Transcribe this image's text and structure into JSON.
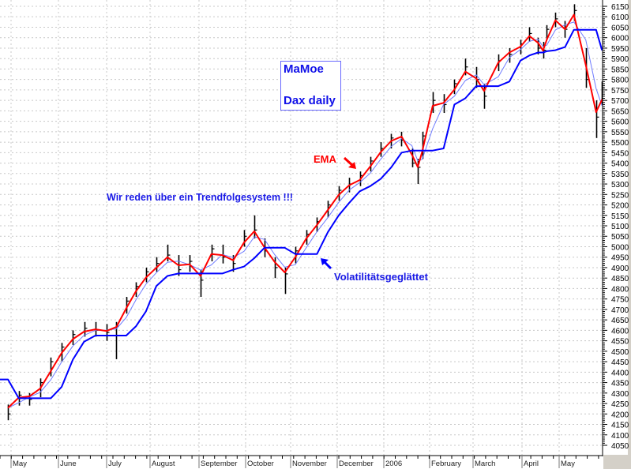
{
  "chart_data": {
    "type": "ohlc-line",
    "title": "",
    "xlabel": "",
    "ylabel": "",
    "ylim": [
      4050,
      6150
    ],
    "y_grid_step": 50,
    "grid": true,
    "y_axis_side": "right",
    "y_tick_labels": [
      "4050",
      "4100",
      "4150",
      "4200",
      "4250",
      "4300",
      "4350",
      "4400",
      "4450",
      "4500",
      "4550",
      "4600",
      "4650",
      "4700",
      "4750",
      "4800",
      "4850",
      "4900",
      "4950",
      "5000",
      "5050",
      "5100",
      "5150",
      "5200",
      "5250",
      "5300",
      "5350",
      "5400",
      "5450",
      "5500",
      "5550",
      "5600",
      "5650",
      "5700",
      "5750",
      "5800",
      "5850",
      "5900",
      "5950",
      "6000",
      "6050",
      "6100",
      "6150"
    ],
    "x_tick_labels": [
      {
        "month": "2005-05",
        "label": "May"
      },
      {
        "month": "2005-06",
        "label": "June"
      },
      {
        "month": "2005-07",
        "label": "July"
      },
      {
        "month": "2005-08",
        "label": "August"
      },
      {
        "month": "2005-09",
        "label": "September"
      },
      {
        "month": "2005-10",
        "label": "October"
      },
      {
        "month": "2005-11",
        "label": "November"
      },
      {
        "month": "2005-12",
        "label": "December"
      },
      {
        "month": "2006-01",
        "label": "2006"
      },
      {
        "month": "2006-02",
        "label": "February"
      },
      {
        "month": "2006-03",
        "label": "March"
      },
      {
        "month": "2006-04",
        "label": "April"
      },
      {
        "month": "2006-05",
        "label": "May"
      }
    ],
    "colors": {
      "bars": "#000000",
      "ema": "#ff0000",
      "ma_thin": "#6f7cff",
      "volatility": "#0000ff",
      "grid": "#c8c8c8"
    },
    "dates": [
      "2005-04-29",
      "2005-05-06",
      "2005-05-13",
      "2005-05-20",
      "2005-05-27",
      "2005-06-03",
      "2005-06-10",
      "2005-06-17",
      "2005-06-24",
      "2005-07-01",
      "2005-07-08",
      "2005-07-15",
      "2005-07-22",
      "2005-07-29",
      "2005-08-05",
      "2005-08-12",
      "2005-08-19",
      "2005-08-26",
      "2005-09-02",
      "2005-09-09",
      "2005-09-16",
      "2005-09-23",
      "2005-09-30",
      "2005-10-07",
      "2005-10-14",
      "2005-10-21",
      "2005-10-28",
      "2005-11-04",
      "2005-11-11",
      "2005-11-18",
      "2005-11-25",
      "2005-12-02",
      "2005-12-09",
      "2005-12-16",
      "2005-12-23",
      "2005-12-30",
      "2006-01-06",
      "2006-01-13",
      "2006-01-20",
      "2006-01-24",
      "2006-01-27",
      "2006-02-03",
      "2006-02-10",
      "2006-02-17",
      "2006-02-24",
      "2006-03-03",
      "2006-03-08",
      "2006-03-17",
      "2006-03-24",
      "2006-03-31",
      "2006-04-07",
      "2006-04-14",
      "2006-04-18",
      "2006-04-21",
      "2006-04-28",
      "2006-05-05",
      "2006-05-11",
      "2006-05-19",
      "2006-05-26",
      "2006-05-30"
    ],
    "high": [
      4245,
      4310,
      4300,
      4370,
      4470,
      4540,
      4600,
      4640,
      4640,
      4630,
      4640,
      4760,
      4830,
      4900,
      4950,
      5010,
      4960,
      4960,
      4890,
      5010,
      5010,
      4960,
      5080,
      5150,
      5040,
      4950,
      4900,
      5000,
      5080,
      5140,
      5220,
      5290,
      5330,
      5360,
      5430,
      5500,
      5540,
      5550,
      5470,
      5420,
      5550,
      5740,
      5730,
      5800,
      5900,
      5860,
      5780,
      5920,
      5950,
      5990,
      6050,
      6000,
      5980,
      6060,
      6120,
      6080,
      6160,
      5950,
      5700,
      5790
    ],
    "low": [
      4170,
      4240,
      4240,
      4280,
      4380,
      4450,
      4530,
      4570,
      4570,
      4550,
      4462,
      4680,
      4760,
      4830,
      4880,
      4930,
      4860,
      4880,
      4760,
      4930,
      4920,
      4880,
      5000,
      5040,
      4950,
      4850,
      4774,
      4920,
      5010,
      5070,
      5140,
      5220,
      5260,
      5290,
      5360,
      5430,
      5470,
      5480,
      5380,
      5300,
      5420,
      5640,
      5640,
      5730,
      5820,
      5760,
      5660,
      5840,
      5880,
      5920,
      5980,
      5920,
      5900,
      5990,
      6050,
      6000,
      6080,
      5760,
      5520,
      5680
    ],
    "close": [
      4200,
      4290,
      4270,
      4350,
      4450,
      4520,
      4580,
      4610,
      4600,
      4590,
      4620,
      4740,
      4810,
      4880,
      4920,
      4960,
      4890,
      4930,
      4840,
      4990,
      4950,
      4920,
      5050,
      5080,
      4980,
      4900,
      4870,
      4980,
      5060,
      5120,
      5200,
      5270,
      5300,
      5340,
      5410,
      5470,
      5520,
      5510,
      5400,
      5380,
      5530,
      5700,
      5680,
      5780,
      5860,
      5800,
      5720,
      5890,
      5920,
      5970,
      6020,
      5950,
      5940,
      6040,
      6090,
      6040,
      6130,
      5800,
      5620,
      5760
    ],
    "series": [
      {
        "key": "ema",
        "name": "EMA",
        "values": [
          4229,
          4278,
          4284,
          4321,
          4405,
          4492,
          4558,
          4594,
          4605,
          4597,
          4616,
          4705,
          4788,
          4852,
          4900,
          4950,
          4911,
          4916,
          4860,
          4965,
          4960,
          4935,
          5020,
          5074,
          4996,
          4927,
          4877,
          4950,
          5039,
          5104,
          5176,
          5248,
          5294,
          5319,
          5384,
          5453,
          5506,
          5527,
          5441,
          5381,
          5455,
          5674,
          5688,
          5752,
          5838,
          5805,
          5745,
          5881,
          5929,
          5957,
          6008,
          5975,
          5938,
          5990,
          6083,
          6040,
          6110,
          5870,
          5644,
          5704
        ]
      },
      {
        "key": "ma_thin",
        "values": [
          4229,
          4254,
          4281,
          4303,
          4363,
          4449,
          4525,
          4576,
          4600,
          4601,
          4607,
          4661,
          4747,
          4820,
          4876,
          4925,
          4931,
          4914,
          4888,
          4913,
          4963,
          4948,
          4978,
          5047,
          5035,
          4962,
          4902,
          4914,
          4995,
          5072,
          5140,
          5212,
          5271,
          5307,
          5352,
          5419,
          5480,
          5517,
          5484,
          5411,
          5418,
          5565,
          5681,
          5720,
          5795,
          5822,
          5775,
          5813,
          5905,
          5943,
          5983,
          5992,
          5957,
          5964,
          6037,
          6062,
          6075,
          5990,
          5757,
          5674
        ]
      },
      {
        "key": "volatility",
        "name": "Volatilitätsgeglättet",
        "values": [
          4365,
          4275,
          4275,
          4275,
          4275,
          4330,
          4460,
          4546,
          4575,
          4575,
          4575,
          4575,
          4620,
          4690,
          4812,
          4860,
          4872,
          4872,
          4872,
          4872,
          4872,
          4890,
          4905,
          4945,
          4995,
          4995,
          4995,
          4965,
          4965,
          4965,
          5070,
          5150,
          5210,
          5265,
          5290,
          5325,
          5380,
          5450,
          5460,
          5460,
          5460,
          5460,
          5470,
          5680,
          5710,
          5768,
          5768,
          5768,
          5790,
          5890,
          5915,
          5929,
          5929,
          5935,
          5940,
          5955,
          6038,
          6038,
          6038,
          5940
        ]
      }
    ],
    "annotations": {
      "title_box": [
        "MaMoe",
        "Dax daily"
      ],
      "ema_label": "EMA",
      "trend_text": "Wir reden über ein Trendfolgesystem !!!",
      "volatility_label": "Volatilitätsgeglättet"
    }
  }
}
